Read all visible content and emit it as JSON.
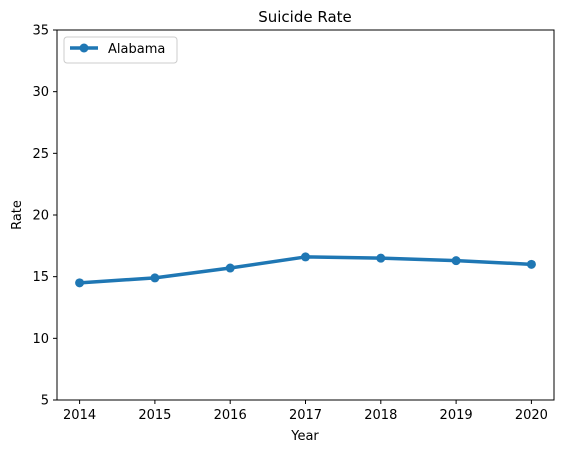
{
  "chart_data": {
    "type": "line",
    "title": "Suicide Rate",
    "xlabel": "Year",
    "ylabel": "Rate",
    "x": [
      2014,
      2015,
      2016,
      2017,
      2018,
      2019,
      2020
    ],
    "series": [
      {
        "name": "Alabama",
        "values": [
          14.5,
          14.9,
          15.7,
          16.6,
          16.5,
          16.3,
          16.0
        ],
        "color": "#1f77b4"
      }
    ],
    "xticks": [
      "2014",
      "2015",
      "2016",
      "2017",
      "2018",
      "2019",
      "2020"
    ],
    "yticks": [
      "5",
      "10",
      "15",
      "20",
      "25",
      "30",
      "35"
    ],
    "ylim": [
      5,
      35
    ],
    "xlim": [
      2013.7,
      2020.3
    ],
    "grid": false,
    "legend_position": "top-left"
  }
}
